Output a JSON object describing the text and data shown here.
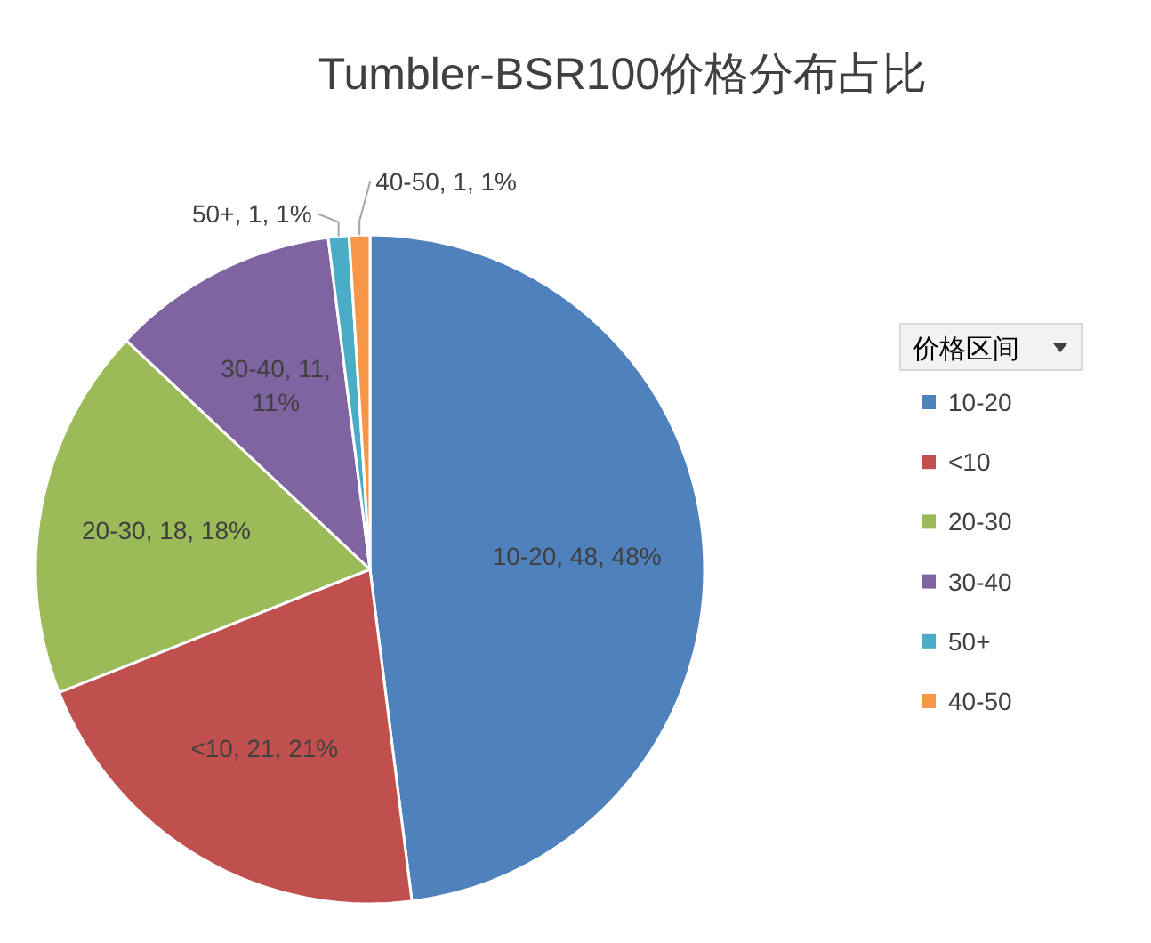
{
  "chart_data": {
    "type": "pie",
    "title": "Tumbler-BSR100价格分布占比",
    "legend_title": "价格区间",
    "legend": "right",
    "categories": [
      "10-20",
      "<10",
      "20-30",
      "30-40",
      "50+",
      "40-50"
    ],
    "values": [
      48,
      21,
      18,
      11,
      1,
      1
    ],
    "colors": [
      "#4f81bd",
      "#c0504d",
      "#9bbb59",
      "#8064a2",
      "#4bacc6",
      "#f79646"
    ],
    "value_labels": [
      "10-20, 48, 48%",
      "<10, 21, 21%",
      "20-30, 18, 18%",
      "30-40, 11, 11%",
      "50+, 1, 1%",
      "40-50, 1, 1%"
    ]
  }
}
